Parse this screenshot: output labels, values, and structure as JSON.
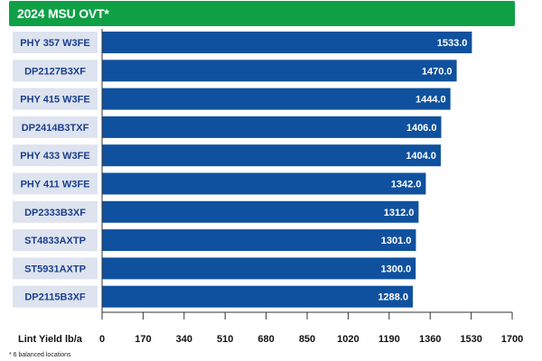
{
  "chart_data": {
    "type": "bar",
    "orientation": "horizontal",
    "title": "2024 MSU OVT*",
    "categories": [
      "PHY 357 W3FE",
      "DP2127B3XF",
      "PHY 415 W3FE",
      "DP2414B3TXF",
      "PHY 433 W3FE",
      "PHY 411 W3FE",
      "DP2333B3XF",
      "ST4833AXTP",
      "ST5931AXTP",
      "DP2115B3XF"
    ],
    "values": [
      1533.0,
      1470.0,
      1444.0,
      1406.0,
      1404.0,
      1342.0,
      1312.0,
      1301.0,
      1300.0,
      1288.0
    ],
    "value_labels": [
      "1533.0",
      "1470.0",
      "1444.0",
      "1406.0",
      "1404.0",
      "1342.0",
      "1312.0",
      "1301.0",
      "1300.0",
      "1288.0"
    ],
    "xlabel": "Lint Yield lb/a",
    "xlim": [
      0,
      1700
    ],
    "xticks": [
      0,
      170,
      340,
      510,
      680,
      850,
      1020,
      1190,
      1360,
      1530,
      1700
    ],
    "grid": false,
    "bar_color": "#0f519e",
    "category_label_bg": "#dde3ef",
    "category_label_color": "#1b3f8c",
    "title_bg": "#0fa046"
  },
  "footnote": "* 6 balanced locations"
}
